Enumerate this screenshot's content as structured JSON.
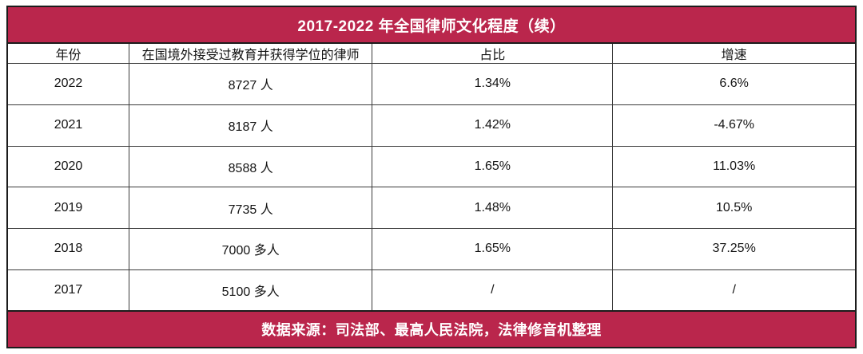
{
  "title": "2017-2022 年全国律师文化程度（续）",
  "footer": "数据来源：司法部、最高人民法院，法律修音机整理",
  "colors": {
    "accent": "#ba264c",
    "grid": "#3a3a3a",
    "outer_border": "#1c1c1c",
    "text": "#141414",
    "title_text": "#ffffff",
    "background": "#ffffff"
  },
  "chart_data": {
    "type": "table",
    "title": "2017-2022 年全国律师文化程度（续）",
    "source_note": "数据来源：司法部、最高人民法院，法律修音机整理",
    "columns": [
      "年份",
      "在国境外接受过教育并获得学位的律师",
      "占比",
      "增速"
    ],
    "rows": [
      [
        "2022",
        "8727 人",
        "1.34%",
        "6.6%"
      ],
      [
        "2021",
        "8187 人",
        "1.42%",
        "-4.67%"
      ],
      [
        "2020",
        "8588 人",
        "1.65%",
        "11.03%"
      ],
      [
        "2019",
        "7735 人",
        "1.48%",
        "10.5%"
      ],
      [
        "2018",
        "7000 多人",
        "1.65%",
        "37.25%"
      ],
      [
        "2017",
        "5100 多人",
        "/",
        "/"
      ]
    ]
  }
}
